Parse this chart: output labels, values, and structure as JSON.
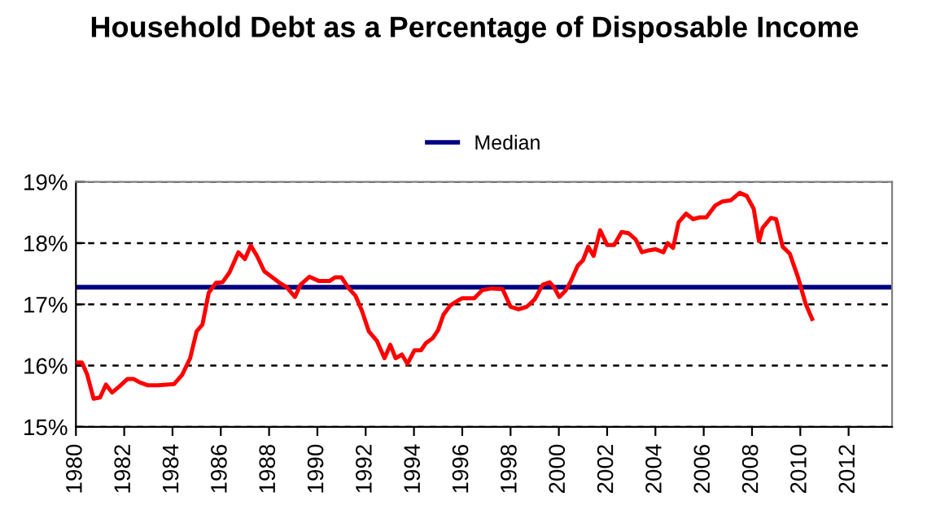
{
  "chart_data": {
    "type": "line",
    "title": "Household Debt as a Percentage of Disposable Income",
    "x": [
      1980.0,
      1980.25,
      1980.47,
      1980.73,
      1981.0,
      1981.24,
      1981.5,
      1981.8,
      1982.13,
      1982.4,
      1982.62,
      1982.96,
      1983.4,
      1984.07,
      1984.4,
      1984.73,
      1985.0,
      1985.24,
      1985.5,
      1985.8,
      1986.07,
      1986.36,
      1986.73,
      1987.0,
      1987.24,
      1987.5,
      1987.8,
      1988.1,
      1988.4,
      1988.73,
      1989.07,
      1989.3,
      1989.67,
      1990.07,
      1990.5,
      1990.73,
      1991.0,
      1991.3,
      1991.58,
      1991.84,
      1992.13,
      1992.47,
      1992.78,
      1993.02,
      1993.24,
      1993.5,
      1993.73,
      1994.02,
      1994.29,
      1994.5,
      1994.78,
      1995.0,
      1995.22,
      1995.5,
      1995.9,
      1996.0,
      1996.5,
      1996.82,
      1997.22,
      1997.67,
      1998.0,
      1998.33,
      1998.67,
      1999.0,
      1999.33,
      1999.62,
      1999.78,
      2000.02,
      2000.29,
      2000.5,
      2000.78,
      2001.0,
      2001.22,
      2001.44,
      2001.71,
      2002.0,
      2002.29,
      2002.6,
      2002.89,
      2003.18,
      2003.44,
      2003.71,
      2004.0,
      2004.33,
      2004.51,
      2004.73,
      2004.96,
      2005.27,
      2005.56,
      2005.84,
      2006.11,
      2006.47,
      2006.78,
      2007.13,
      2007.49,
      2007.78,
      2008.07,
      2008.29,
      2008.44,
      2008.78,
      2009.0,
      2009.27,
      2009.56,
      2009.89,
      2010.22,
      2010.49
    ],
    "series": [
      {
        "color": "#ff0000",
        "values": [
          16.05,
          16.05,
          15.85,
          15.46,
          15.48,
          15.69,
          15.56,
          15.66,
          15.78,
          15.78,
          15.73,
          15.68,
          15.68,
          15.7,
          15.85,
          16.12,
          16.56,
          16.67,
          17.19,
          17.35,
          17.36,
          17.52,
          17.85,
          17.74,
          17.96,
          17.79,
          17.54,
          17.45,
          17.36,
          17.28,
          17.12,
          17.32,
          17.45,
          17.38,
          17.38,
          17.44,
          17.44,
          17.26,
          17.14,
          16.9,
          16.56,
          16.4,
          16.12,
          16.34,
          16.12,
          16.18,
          16.03,
          16.25,
          16.25,
          16.37,
          16.45,
          16.58,
          16.83,
          16.98,
          17.08,
          17.1,
          17.1,
          17.23,
          17.26,
          17.25,
          16.96,
          16.92,
          16.96,
          17.08,
          17.32,
          17.36,
          17.29,
          17.12,
          17.23,
          17.38,
          17.63,
          17.72,
          17.94,
          17.79,
          18.21,
          17.97,
          17.97,
          18.18,
          18.16,
          18.06,
          17.85,
          17.88,
          17.9,
          17.85,
          18.0,
          17.92,
          18.34,
          18.48,
          18.39,
          18.42,
          18.42,
          18.61,
          18.68,
          18.7,
          18.82,
          18.77,
          18.56,
          18.03,
          18.25,
          18.41,
          18.39,
          17.94,
          17.83,
          17.46,
          17.01,
          16.76
        ]
      }
    ],
    "ref_lines": [
      {
        "axis": "y",
        "value": 17.28,
        "label": "Median",
        "color": "#000080"
      }
    ],
    "xlim": [
      1980,
      2013.8
    ],
    "xticks": [
      1980,
      1982,
      1984,
      1986,
      1988,
      1990,
      1992,
      1994,
      1996,
      1998,
      2000,
      2002,
      2004,
      2006,
      2008,
      2010,
      2012
    ],
    "ylim": [
      15,
      19
    ],
    "yticks": [
      {
        "value": 15,
        "label": "15%"
      },
      {
        "value": 16,
        "label": "16%"
      },
      {
        "value": 17,
        "label": "17%"
      },
      {
        "value": 18,
        "label": "18%"
      },
      {
        "value": 19,
        "label": "19%"
      }
    ],
    "grid": "y",
    "legend": "top",
    "marker": "none",
    "line_style": "solid"
  }
}
